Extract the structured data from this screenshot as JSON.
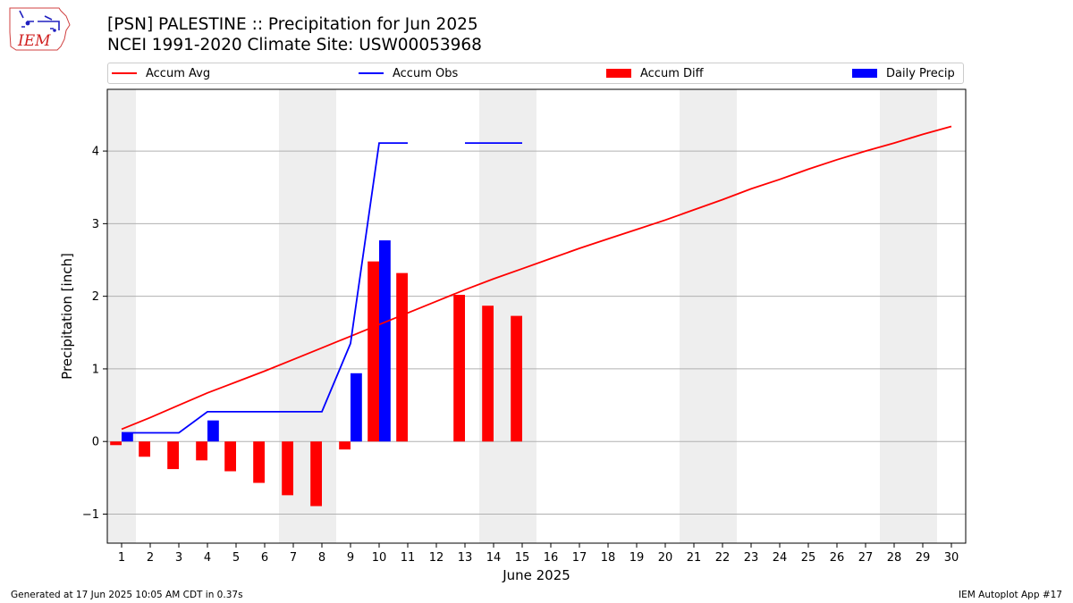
{
  "header": {
    "title_line1": "[PSN] PALESTINE :: Precipitation for Jun 2025",
    "title_line2": "NCEI 1991-2020 Climate Site: USW00053968",
    "logo_text": "IEM"
  },
  "legend": {
    "placement": "top",
    "items": [
      {
        "label": "Accum Avg",
        "kind": "line",
        "color": "#ff0000"
      },
      {
        "label": "Accum Obs",
        "kind": "line",
        "color": "#0000ff"
      },
      {
        "label": "Accum Diff",
        "kind": "box",
        "color": "#ff0000"
      },
      {
        "label": "Daily Precip",
        "kind": "box",
        "color": "#0000ff"
      }
    ]
  },
  "footer": {
    "generated": "Generated at 17 Jun 2025 10:05 AM CDT in 0.37s",
    "app": "IEM Autoplot App #17"
  },
  "chart_data": {
    "type": "bar",
    "xlabel": "June 2025",
    "ylabel": "Precipitation [inch]",
    "x": [
      1,
      2,
      3,
      4,
      5,
      6,
      7,
      8,
      9,
      10,
      11,
      12,
      13,
      14,
      15,
      16,
      17,
      18,
      19,
      20,
      21,
      22,
      23,
      24,
      25,
      26,
      27,
      28,
      29,
      30
    ],
    "xlim": [
      0.5,
      30.5
    ],
    "ylim": [
      -1.4,
      4.85
    ],
    "yticks": [
      -1,
      0,
      1,
      2,
      3,
      4
    ],
    "ytick_labels": [
      "−1",
      "0",
      "1",
      "2",
      "3",
      "4"
    ],
    "grid": "horizontal",
    "weekend_shading": [
      [
        0.5,
        1.5
      ],
      [
        6.5,
        8.5
      ],
      [
        13.5,
        15.5
      ],
      [
        20.5,
        22.5
      ],
      [
        27.5,
        29.5
      ]
    ],
    "shading_color": "#eeeeee",
    "series": [
      {
        "name": "Accum Avg",
        "type": "line",
        "color": "#ff0000",
        "values": [
          0.17,
          0.33,
          0.5,
          0.67,
          0.82,
          0.97,
          1.13,
          1.29,
          1.45,
          1.61,
          1.77,
          1.93,
          2.09,
          2.24,
          2.38,
          2.52,
          2.66,
          2.79,
          2.92,
          3.05,
          3.19,
          3.33,
          3.48,
          3.61,
          3.75,
          3.88,
          4.0,
          4.11,
          4.23,
          4.34
        ]
      },
      {
        "name": "Accum Obs",
        "type": "line",
        "color": "#0000ff",
        "values": [
          0.12,
          0.12,
          0.12,
          0.41,
          0.41,
          0.41,
          0.41,
          0.41,
          1.35,
          4.11,
          4.11,
          null,
          4.11,
          4.11,
          4.11,
          null,
          null,
          null,
          null,
          null,
          null,
          null,
          null,
          null,
          null,
          null,
          null,
          null,
          null,
          null
        ]
      },
      {
        "name": "Accum Diff",
        "type": "bar",
        "color": "#ff0000",
        "values": [
          -0.05,
          -0.21,
          -0.38,
          -0.26,
          -0.41,
          -0.57,
          -0.74,
          -0.89,
          -0.11,
          2.48,
          2.32,
          null,
          2.02,
          1.87,
          1.73,
          null,
          null,
          null,
          null,
          null,
          null,
          null,
          null,
          null,
          null,
          null,
          null,
          null,
          null,
          null
        ]
      },
      {
        "name": "Daily Precip",
        "type": "bar",
        "color": "#0000ff",
        "values": [
          0.12,
          0,
          0,
          0.29,
          0,
          0,
          0,
          0,
          0.94,
          2.77,
          0,
          null,
          0,
          0,
          0,
          null,
          null,
          null,
          null,
          null,
          null,
          null,
          null,
          null,
          null,
          null,
          null,
          null,
          null,
          null
        ]
      }
    ]
  }
}
